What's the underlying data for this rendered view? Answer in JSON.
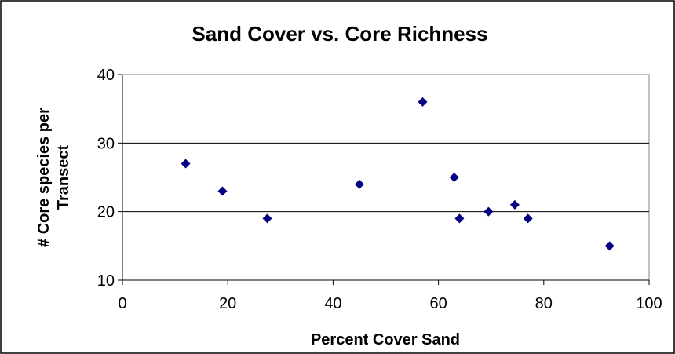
{
  "chart_data": {
    "type": "scatter",
    "title": "Sand Cover vs. Core Richness",
    "xlabel": "Percent Cover Sand",
    "ylabel_lines": [
      "# Core species per",
      "Transect"
    ],
    "xlim": [
      0,
      100
    ],
    "ylim": [
      10,
      40
    ],
    "xticks": [
      "0",
      "20",
      "40",
      "60",
      "80",
      "100"
    ],
    "yticks": [
      "10",
      "20",
      "30",
      "40"
    ],
    "grid": "horizontal",
    "legend": "none",
    "marker": "diamond",
    "colors": {
      "marker": "#000080",
      "grid": "#000000",
      "plot_background": "#ffffff",
      "frame": "#000000"
    },
    "points": [
      {
        "x": 12,
        "y": 27
      },
      {
        "x": 19,
        "y": 23
      },
      {
        "x": 27.5,
        "y": 19
      },
      {
        "x": 45,
        "y": 24
      },
      {
        "x": 57,
        "y": 36
      },
      {
        "x": 63,
        "y": 25
      },
      {
        "x": 64,
        "y": 19
      },
      {
        "x": 69.5,
        "y": 20
      },
      {
        "x": 74.5,
        "y": 21
      },
      {
        "x": 77,
        "y": 19
      },
      {
        "x": 92.5,
        "y": 15
      }
    ]
  }
}
